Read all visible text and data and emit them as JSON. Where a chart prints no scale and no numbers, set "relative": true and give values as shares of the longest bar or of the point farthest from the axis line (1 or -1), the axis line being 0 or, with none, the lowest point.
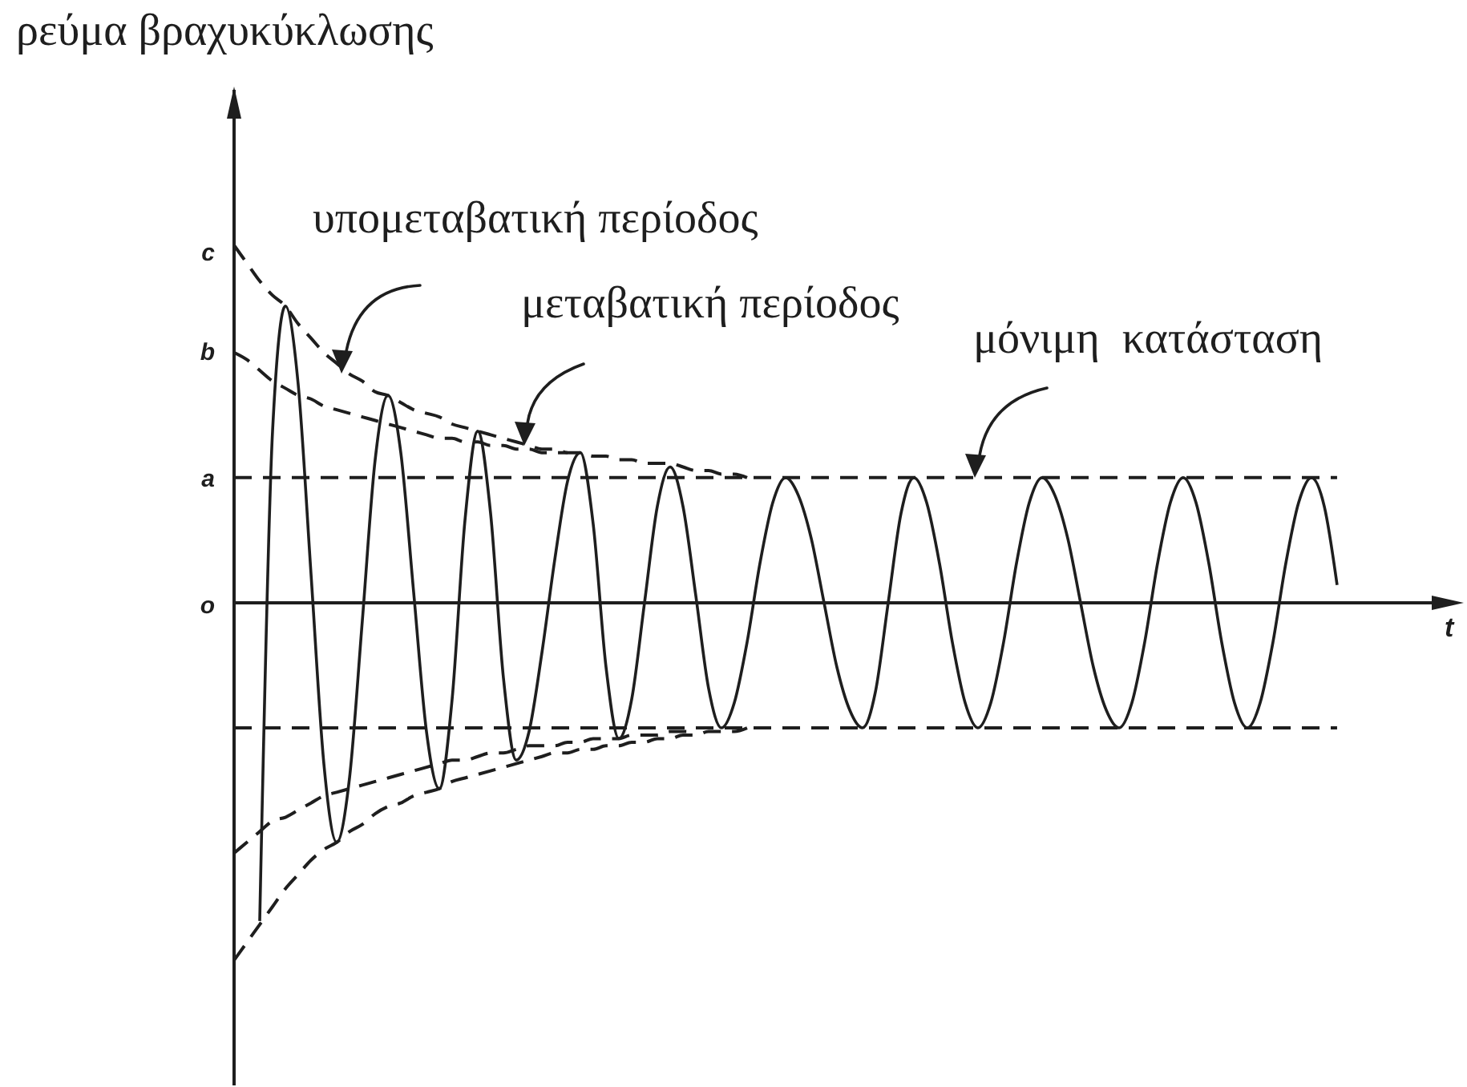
{
  "chart_data": {
    "type": "line",
    "relative": true,
    "xlabel": "t",
    "ylabel": "ρεύμα βραχυκύκλωσης",
    "annotations": [
      "υπομεταβατική περίοδος",
      "μεταβατική περίοδος",
      "μόνιμη  κατάσταση",
      "c",
      "b",
      "o"
    ],
    "categories": [
      null,
      null,
      null,
      null,
      null,
      null,
      null,
      null,
      null,
      null,
      null,
      null,
      null,
      null,
      null,
      null,
      null,
      null,
      null,
      null,
      null,
      null,
      null,
      null,
      null,
      null,
      null,
      null,
      null,
      null,
      null,
      null,
      null,
      null,
      null,
      null,
      null,
      null,
      null,
      null,
      null,
      null,
      null,
      null,
      null,
      null,
      null,
      null,
      null,
      null,
      null,
      null,
      null,
      null,
      null,
      null,
      null,
      null,
      null,
      null,
      null,
      null,
      null,
      null,
      null,
      null,
      null,
      null,
      null,
      null,
      null,
      null,
      null,
      null,
      null,
      null,
      null,
      null,
      null,
      null,
      null,
      null,
      null,
      null,
      null,
      null,
      null
    ],
    "ref_lines": [
      {
        "axis": "y",
        "value": 0.35,
        "label": "a",
        "color": "#1e1e1e",
        "line_style": "dashed"
      },
      {
        "axis": "y",
        "value": -0.35,
        "color": "#1e1e1e",
        "line_style": "dashed"
      }
    ],
    "series": [
      {
        "type": "line",
        "color": "#1e1e1e",
        "line_style": "solid",
        "values": [
          null,
          null,
          -0.89,
          0.48,
          0.83,
          0.61,
          0.08,
          -0.45,
          -0.67,
          -0.49,
          -0.05,
          0.4,
          0.58,
          0.42,
          0.03,
          -0.36,
          -0.52,
          -0.27,
          0.23,
          0.48,
          0.25,
          -0.21,
          -0.44,
          -0.36,
          -0.14,
          0.12,
          0.34,
          0.42,
          0.22,
          -0.18,
          -0.38,
          -0.27,
          0,
          0.27,
          0.38,
          0.27,
          0.02,
          -0.24,
          -0.35,
          -0.28,
          -0.11,
          0.11,
          0.28,
          0.35,
          0.3,
          0.18,
          0,
          -0.18,
          -0.3,
          -0.35,
          -0.25,
          0,
          0.25,
          0.35,
          0.28,
          0.11,
          -0.11,
          -0.28,
          -0.35,
          -0.28,
          -0.11,
          0.11,
          0.28,
          0.35,
          0.3,
          0.18,
          0,
          -0.18,
          -0.3,
          -0.35,
          -0.28,
          -0.11,
          0.11,
          0.28,
          0.35,
          0.28,
          0.11,
          -0.11,
          -0.28,
          -0.35,
          -0.28,
          -0.11,
          0.11,
          0.28,
          0.35,
          0.27,
          0.05
        ]
      },
      {
        "type": "line",
        "color": "#1e1e1e",
        "line_style": "dashed",
        "values": [
          1,
          0.95,
          0.9,
          0.86,
          0.83,
          0.78,
          0.74,
          0.7,
          0.67,
          0.64,
          0.62,
          0.59,
          0.58,
          0.56,
          0.54,
          0.53,
          0.52,
          0.5,
          0.49,
          0.48,
          0.47,
          0.46,
          0.45,
          0.44,
          0.43,
          0.43,
          0.42,
          0.42,
          0.41,
          0.41,
          0.4,
          0.4,
          0.39,
          0.39,
          0.39,
          0.38,
          0.37,
          0.37,
          0.36,
          0.36,
          0.35,
          null,
          null,
          null,
          null,
          null,
          null,
          null,
          null,
          null,
          null,
          null,
          null,
          null,
          null,
          null,
          null,
          null,
          null,
          null,
          null,
          null,
          null,
          null,
          null,
          null,
          null,
          null,
          null,
          null,
          null,
          null,
          null,
          null,
          null,
          null,
          null,
          null,
          null,
          null,
          null,
          null,
          null,
          null,
          null,
          null,
          null
        ]
      },
      {
        "type": "line",
        "color": "#1e1e1e",
        "line_style": "dashed",
        "values": [
          0.7,
          0.68,
          0.65,
          0.62,
          0.6,
          0.58,
          0.57,
          0.55,
          0.54,
          0.53,
          0.52,
          0.51,
          0.5,
          0.49,
          0.48,
          0.47,
          0.46,
          0.46,
          0.45,
          0.45,
          0.44,
          0.44,
          0.43,
          0.43,
          0.42,
          0.42,
          0.42,
          null,
          null,
          null,
          null,
          null,
          null,
          null,
          null,
          null,
          null,
          null,
          null,
          null,
          null,
          null,
          null,
          null,
          null,
          null,
          null,
          null,
          null,
          null,
          null,
          null,
          null,
          null,
          null,
          null,
          null,
          null,
          null,
          null,
          null,
          null,
          null,
          null,
          null,
          null,
          null,
          null,
          null,
          null,
          null,
          null,
          null,
          null,
          null,
          null,
          null,
          null,
          null,
          null,
          null,
          null,
          null,
          null,
          null,
          null,
          null
        ]
      },
      {
        "type": "line",
        "color": "#1e1e1e",
        "line_style": "dashed",
        "values": [
          -1,
          -0.95,
          -0.9,
          -0.85,
          -0.8,
          -0.76,
          -0.72,
          -0.69,
          -0.67,
          -0.64,
          -0.62,
          -0.59,
          -0.57,
          -0.56,
          -0.54,
          -0.53,
          -0.52,
          -0.5,
          -0.49,
          -0.48,
          -0.47,
          -0.46,
          -0.45,
          -0.44,
          -0.43,
          -0.42,
          -0.42,
          -0.41,
          -0.41,
          -0.4,
          -0.4,
          -0.39,
          -0.39,
          -0.38,
          -0.38,
          -0.37,
          -0.37,
          -0.36,
          -0.36,
          -0.36,
          -0.35,
          null,
          null,
          null,
          null,
          null,
          null,
          null,
          null,
          null,
          null,
          null,
          null,
          null,
          null,
          null,
          null,
          null,
          null,
          null,
          null,
          null,
          null,
          null,
          null,
          null,
          null,
          null,
          null,
          null,
          null,
          null,
          null,
          null,
          null,
          null,
          null,
          null,
          null,
          null,
          null,
          null,
          null,
          null,
          null,
          null,
          null
        ]
      },
      {
        "type": "line",
        "color": "#1e1e1e",
        "line_style": "dashed",
        "values": [
          -0.7,
          -0.67,
          -0.64,
          -0.61,
          -0.6,
          -0.58,
          -0.56,
          -0.54,
          -0.53,
          -0.52,
          -0.51,
          -0.5,
          -0.49,
          -0.48,
          -0.47,
          -0.46,
          -0.45,
          -0.44,
          -0.44,
          -0.43,
          -0.42,
          -0.42,
          -0.41,
          -0.4,
          -0.4,
          -0.4,
          -0.39,
          -0.39,
          -0.38,
          -0.38,
          -0.38,
          -0.37,
          -0.37,
          -0.37,
          -0.36,
          -0.36,
          -0.36,
          null,
          null,
          null,
          null,
          null,
          null,
          null,
          null,
          null,
          null,
          null,
          null,
          null,
          null,
          null,
          null,
          null,
          null,
          null,
          null,
          null,
          null,
          null,
          null,
          null,
          null,
          null,
          null,
          null,
          null,
          null,
          null,
          null,
          null,
          null,
          null,
          null,
          null,
          null,
          null,
          null,
          null,
          null,
          null,
          null,
          null,
          null,
          null,
          null,
          null
        ]
      }
    ]
  }
}
